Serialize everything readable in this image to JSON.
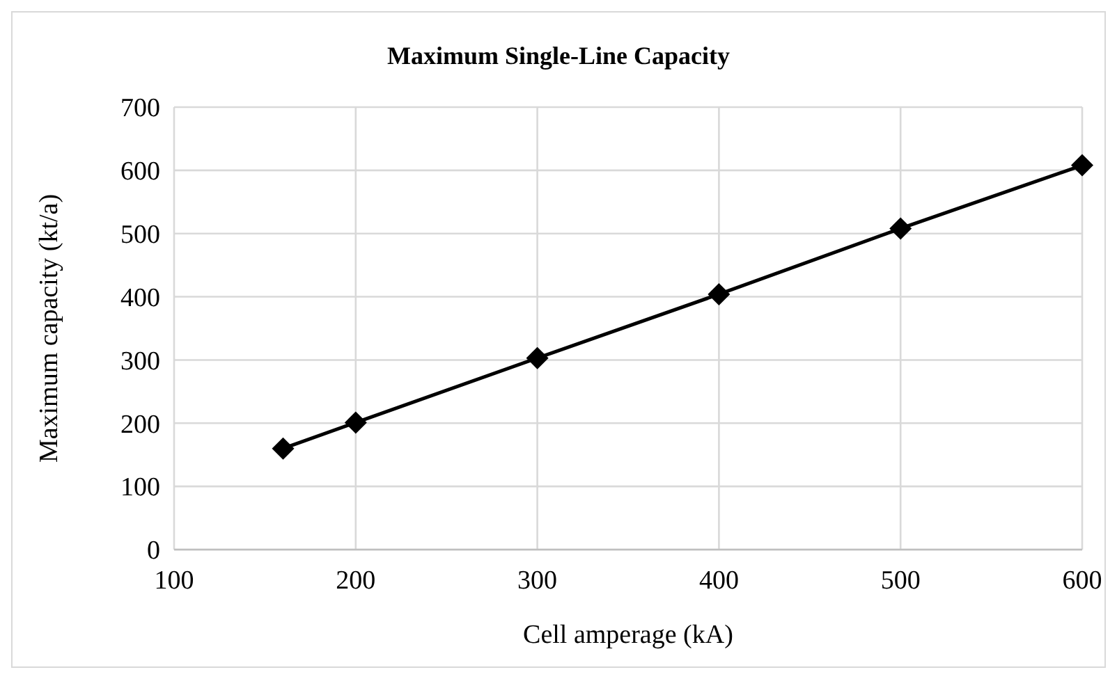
{
  "chart_data": {
    "type": "line",
    "title": "Maximum Single-Line Capacity",
    "xlabel": "Cell amperage (kA)",
    "ylabel": "Maximum capacity (kt/a)",
    "x": [
      160,
      200,
      300,
      400,
      500,
      600
    ],
    "series": [
      {
        "color": "#000000",
        "values": [
          160,
          201,
          303,
          404,
          508,
          608
        ]
      }
    ],
    "xlim": [
      100,
      600
    ],
    "xticks": [
      100,
      200,
      300,
      400,
      500,
      600
    ],
    "ylim": [
      0,
      700
    ],
    "yticks": [
      0,
      100,
      200,
      300,
      400,
      500,
      600,
      700
    ],
    "grid": true,
    "marker": "diamond",
    "line_style": "solid"
  }
}
